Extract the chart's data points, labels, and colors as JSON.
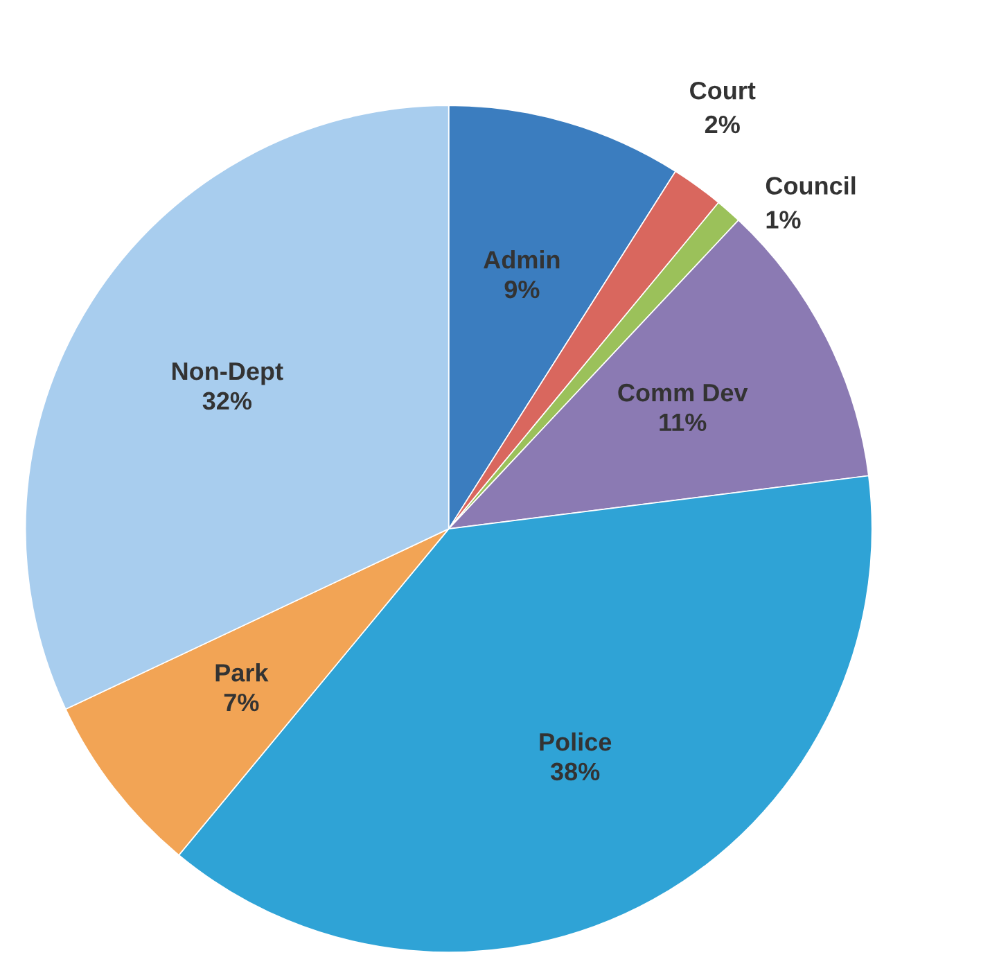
{
  "chart_data": {
    "type": "pie",
    "categories": [
      "Admin",
      "Court",
      "Council",
      "Comm Dev",
      "Police",
      "Park",
      "Non-Dept"
    ],
    "values": [
      9,
      2,
      1,
      11,
      38,
      7,
      32
    ],
    "value_labels": [
      "9%",
      "2%",
      "1%",
      "11%",
      "38%",
      "7%",
      "32%"
    ],
    "colors": [
      "#3b7dbf",
      "#d9675e",
      "#9bc15a",
      "#8b7ab3",
      "#2fa3d6",
      "#f2a455",
      "#a8cdee"
    ]
  }
}
